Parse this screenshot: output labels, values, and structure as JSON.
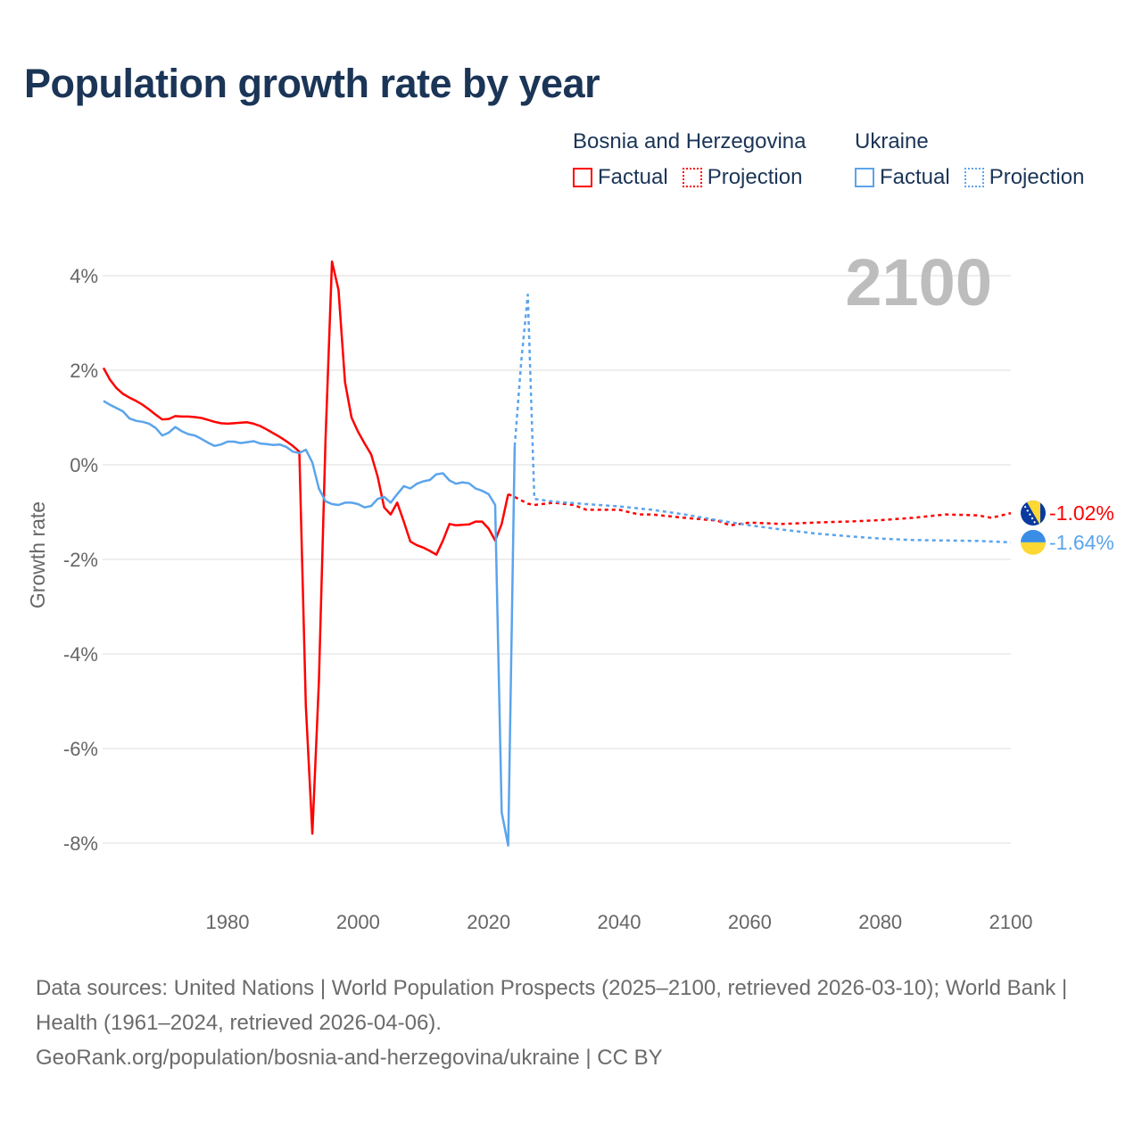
{
  "title": "Population growth rate by year",
  "legend": {
    "groups": [
      {
        "name": "Bosnia and Herzegovina",
        "factual": "Factual",
        "projection": "Projection",
        "color": "#ff0000"
      },
      {
        "name": "Ukraine",
        "factual": "Factual",
        "projection": "Projection",
        "color": "#5ba4ec"
      }
    ]
  },
  "year_label": "2100",
  "footer": {
    "sources": "Data sources: United Nations | World Population Prospects (2025–2100, retrieved 2026-03-10); World Bank | Health (1961–2024, retrieved 2026-04-06).",
    "link": "GeoRank.org/population/bosnia-and-herzegovina/ukraine | CC BY"
  },
  "chart_data": {
    "type": "line",
    "title": "Population growth rate by year",
    "ylabel": "Growth rate",
    "xlabel": "",
    "xlim": [
      1961,
      2100
    ],
    "ylim": [
      -8.5,
      4.5
    ],
    "x_ticks": [
      1980,
      2000,
      2020,
      2040,
      2060,
      2080,
      2100
    ],
    "y_ticks": [
      4,
      2,
      0,
      -2,
      -4,
      -6,
      -8
    ],
    "y_tick_labels": [
      "4%",
      "2%",
      "0%",
      "-2%",
      "-4%",
      "-6%",
      "-8%"
    ],
    "grid": true,
    "legend_position": "top-right",
    "series": [
      {
        "name": "Bosnia and Herzegovina",
        "kind": "Factual",
        "color": "#ff0000",
        "end_label": "-1.02%",
        "x_start": 1961,
        "values": [
          2.05,
          1.8,
          1.62,
          1.5,
          1.42,
          1.35,
          1.27,
          1.17,
          1.06,
          0.96,
          0.97,
          1.03,
          1.02,
          1.02,
          1.01,
          0.99,
          0.95,
          0.91,
          0.88,
          0.87,
          0.88,
          0.89,
          0.9,
          0.87,
          0.82,
          0.75,
          0.67,
          0.59,
          0.5,
          0.4,
          0.28,
          -5.1,
          -7.8,
          -4.6,
          0.5,
          4.3,
          3.7,
          1.75,
          1.0,
          0.7,
          0.45,
          0.22,
          -0.25,
          -0.9,
          -1.05,
          -0.8,
          -1.2,
          -1.62,
          -1.7,
          -1.75,
          -1.82,
          -1.9,
          -1.6,
          -1.25,
          -1.28,
          -1.27,
          -1.26,
          -1.2,
          -1.2,
          -1.35,
          -1.6,
          -1.25,
          -0.62
        ]
      },
      {
        "name": "Bosnia and Herzegovina",
        "kind": "Projection",
        "color": "#ff0000",
        "x": [
          2023,
          2024,
          2025,
          2026,
          2027,
          2030,
          2033,
          2035,
          2040,
          2043,
          2045,
          2050,
          2055,
          2057,
          2060,
          2065,
          2070,
          2075,
          2080,
          2085,
          2090,
          2095,
          2097,
          2100
        ],
        "values": [
          -0.62,
          -0.68,
          -0.75,
          -0.82,
          -0.85,
          -0.8,
          -0.85,
          -0.95,
          -0.95,
          -1.05,
          -1.05,
          -1.12,
          -1.18,
          -1.28,
          -1.22,
          -1.25,
          -1.22,
          -1.2,
          -1.17,
          -1.12,
          -1.05,
          -1.07,
          -1.12,
          -1.02
        ]
      },
      {
        "name": "Ukraine",
        "kind": "Factual",
        "color": "#5ba4ec",
        "end_label": "-1.64%",
        "x_start": 1961,
        "values": [
          1.35,
          1.27,
          1.2,
          1.13,
          0.98,
          0.93,
          0.91,
          0.87,
          0.78,
          0.62,
          0.68,
          0.8,
          0.71,
          0.65,
          0.62,
          0.55,
          0.47,
          0.4,
          0.43,
          0.49,
          0.49,
          0.46,
          0.48,
          0.5,
          0.45,
          0.44,
          0.42,
          0.43,
          0.38,
          0.28,
          0.25,
          0.32,
          0.05,
          -0.5,
          -0.77,
          -0.83,
          -0.85,
          -0.8,
          -0.8,
          -0.83,
          -0.9,
          -0.87,
          -0.72,
          -0.68,
          -0.8,
          -0.62,
          -0.45,
          -0.5,
          -0.4,
          -0.35,
          -0.32,
          -0.2,
          -0.18,
          -0.33,
          -0.4,
          -0.37,
          -0.39,
          -0.5,
          -0.55,
          -0.62,
          -0.85,
          -7.35,
          -8.05,
          0.4
        ]
      },
      {
        "name": "Ukraine",
        "kind": "Projection",
        "color": "#5ba4ec",
        "x": [
          2024,
          2025,
          2026,
          2027,
          2030,
          2035,
          2040,
          2045,
          2050,
          2055,
          2060,
          2065,
          2070,
          2075,
          2080,
          2085,
          2090,
          2095,
          2100
        ],
        "values": [
          0.4,
          2.2,
          3.6,
          -0.72,
          -0.78,
          -0.83,
          -0.88,
          -0.95,
          -1.05,
          -1.17,
          -1.28,
          -1.37,
          -1.45,
          -1.51,
          -1.56,
          -1.59,
          -1.6,
          -1.61,
          -1.64
        ]
      }
    ]
  }
}
